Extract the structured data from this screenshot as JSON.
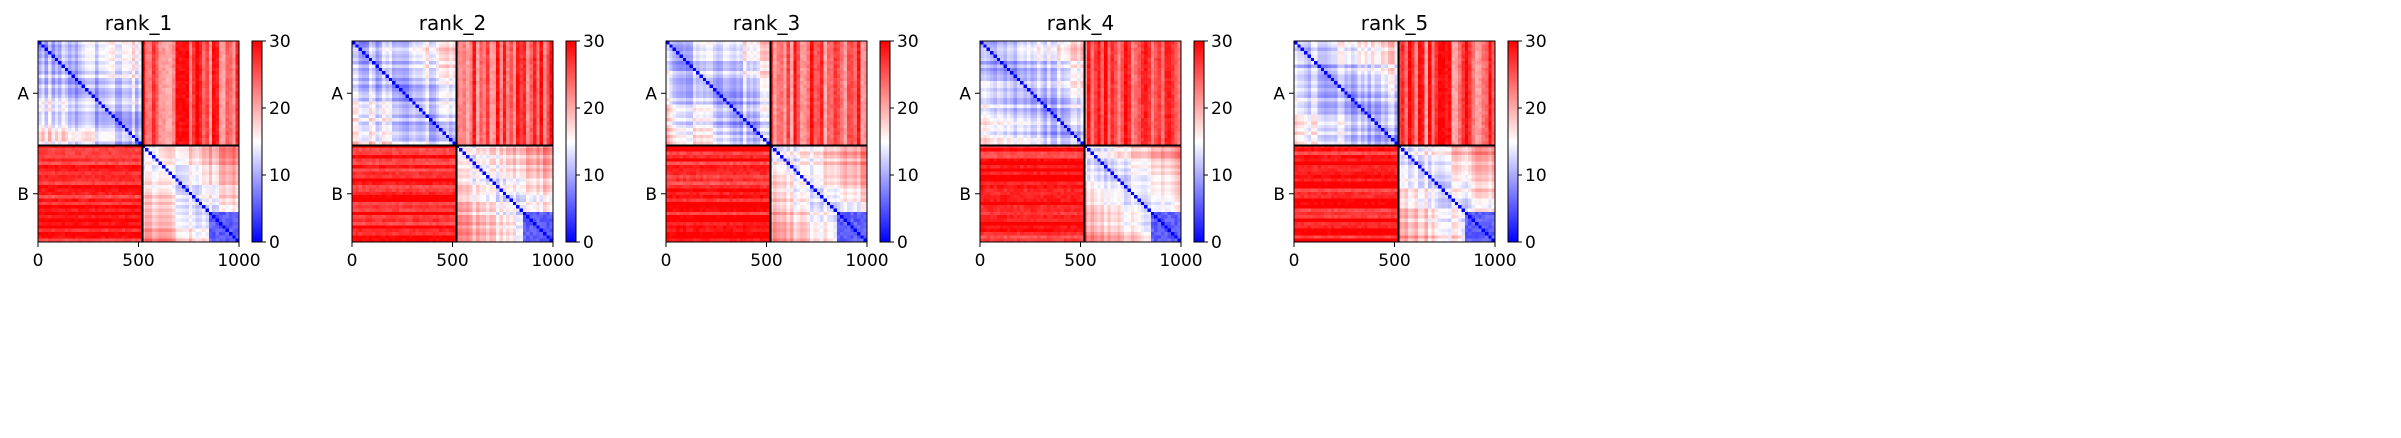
{
  "chart_data": [
    {
      "type": "heatmap",
      "title": "rank_1",
      "xlabel": "",
      "ylabel": "",
      "xlim": [
        0,
        1000
      ],
      "xticks": [
        "0",
        "500",
        "1000"
      ],
      "yticks": [
        "A",
        "B"
      ],
      "chain_boundary": 520,
      "chains": [
        {
          "name": "A",
          "start": 0,
          "end": 520
        },
        {
          "name": "B",
          "start": 520,
          "end": 1000
        }
      ],
      "colorbar": {
        "colormap": "bwr",
        "min": 0,
        "max": 30,
        "ticks": [
          "0",
          "10",
          "20",
          "30"
        ]
      },
      "block_means": {
        "A-A": 8,
        "A-B": 29,
        "B-A": 30,
        "B-B": 12,
        "B-B_subdomain": 4
      }
    },
    {
      "type": "heatmap",
      "title": "rank_2",
      "xlabel": "",
      "ylabel": "",
      "xlim": [
        0,
        1000
      ],
      "xticks": [
        "0",
        "500",
        "1000"
      ],
      "yticks": [
        "A",
        "B"
      ],
      "chain_boundary": 520,
      "chains": [
        {
          "name": "A",
          "start": 0,
          "end": 520
        },
        {
          "name": "B",
          "start": 520,
          "end": 1000
        }
      ],
      "colorbar": {
        "colormap": "bwr",
        "min": 0,
        "max": 30,
        "ticks": [
          "0",
          "10",
          "20",
          "30"
        ]
      },
      "block_means": {
        "A-A": 8,
        "A-B": 29,
        "B-A": 30,
        "B-B": 12,
        "B-B_subdomain": 4
      }
    },
    {
      "type": "heatmap",
      "title": "rank_3",
      "xlabel": "",
      "ylabel": "",
      "xlim": [
        0,
        1000
      ],
      "xticks": [
        "0",
        "500",
        "1000"
      ],
      "yticks": [
        "A",
        "B"
      ],
      "chain_boundary": 520,
      "chains": [
        {
          "name": "A",
          "start": 0,
          "end": 520
        },
        {
          "name": "B",
          "start": 520,
          "end": 1000
        }
      ],
      "colorbar": {
        "colormap": "bwr",
        "min": 0,
        "max": 30,
        "ticks": [
          "0",
          "10",
          "20",
          "30"
        ]
      },
      "block_means": {
        "A-A": 8,
        "A-B": 29,
        "B-A": 30,
        "B-B": 12,
        "B-B_subdomain": 4
      }
    },
    {
      "type": "heatmap",
      "title": "rank_4",
      "xlabel": "",
      "ylabel": "",
      "xlim": [
        0,
        1000
      ],
      "xticks": [
        "0",
        "500",
        "1000"
      ],
      "yticks": [
        "A",
        "B"
      ],
      "chain_boundary": 520,
      "chains": [
        {
          "name": "A",
          "start": 0,
          "end": 520
        },
        {
          "name": "B",
          "start": 520,
          "end": 1000
        }
      ],
      "colorbar": {
        "colormap": "bwr",
        "min": 0,
        "max": 30,
        "ticks": [
          "0",
          "10",
          "20",
          "30"
        ]
      },
      "block_means": {
        "A-A": 8,
        "A-B": 29,
        "B-A": 30,
        "B-B": 12,
        "B-B_subdomain": 4
      }
    },
    {
      "type": "heatmap",
      "title": "rank_5",
      "xlabel": "",
      "ylabel": "",
      "xlim": [
        0,
        1000
      ],
      "xticks": [
        "0",
        "500",
        "1000"
      ],
      "yticks": [
        "A",
        "B"
      ],
      "chain_boundary": 520,
      "chains": [
        {
          "name": "A",
          "start": 0,
          "end": 520
        },
        {
          "name": "B",
          "start": 520,
          "end": 1000
        }
      ],
      "colorbar": {
        "colormap": "bwr",
        "min": 0,
        "max": 30,
        "ticks": [
          "0",
          "10",
          "20",
          "30"
        ]
      },
      "block_means": {
        "A-A": 8,
        "A-B": 29,
        "B-A": 30,
        "B-B": 12,
        "B-B_subdomain": 4
      }
    }
  ]
}
